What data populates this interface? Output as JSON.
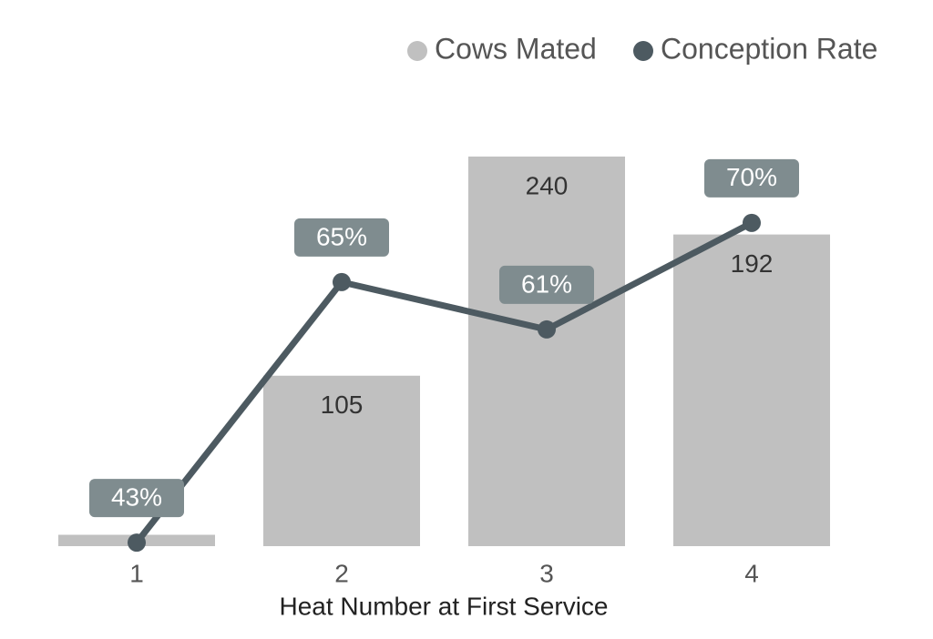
{
  "chart_data": {
    "type": "bar",
    "x_label": "Heat Number at First Service",
    "categories": [
      "1",
      "2",
      "3",
      "4"
    ],
    "series": [
      {
        "name": "Cows Mated",
        "type": "bar",
        "color": "#c0c0c0",
        "values": [
          7,
          105,
          240,
          192
        ],
        "value_labels": [
          null,
          "105",
          "240",
          "192"
        ]
      },
      {
        "name": "Conception Rate",
        "type": "line",
        "axis": "y2",
        "color": "#4d5a61",
        "values": [
          43,
          65,
          61,
          70
        ],
        "value_labels": [
          "43%",
          "65%",
          "61%",
          "70%"
        ]
      }
    ],
    "ylim": [
      0,
      240
    ],
    "y2lim": [
      42.7,
      75.6
    ],
    "grid": false,
    "legend": "top-right"
  }
}
